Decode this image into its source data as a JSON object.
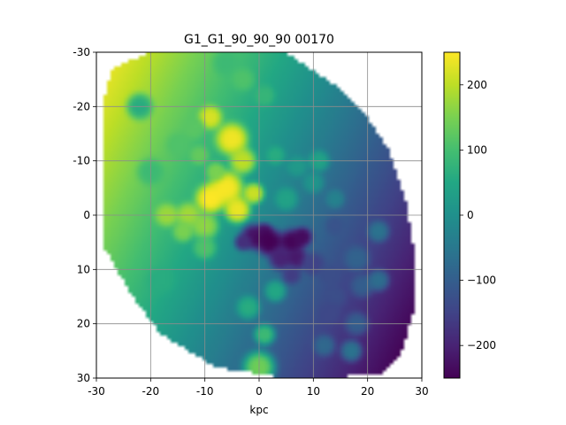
{
  "chart_data": {
    "type": "heatmap",
    "title": "G1_G1_90_90_90   00170",
    "xlabel": "kpc",
    "ylabel": "",
    "xlim": [
      -30,
      30
    ],
    "ylim": [
      -30,
      30
    ],
    "y_inverted": true,
    "x_ticks": [
      "-30",
      "-20",
      "-10",
      "0",
      "10",
      "20",
      "30"
    ],
    "y_ticks": [
      "-30",
      "-20",
      "-10",
      "0",
      "10",
      "20",
      "30"
    ],
    "grid": true,
    "colorbar": {
      "cmap": "viridis",
      "vmin": -250,
      "vmax": 250,
      "ticks": [
        "200",
        "100",
        "0",
        "−100",
        "−200"
      ],
      "tick_values": [
        200,
        100,
        0,
        -100,
        -200
      ]
    },
    "background_value": 0,
    "disk_outline": [
      [
        -27,
        -27
      ],
      [
        -20,
        -30
      ],
      [
        -5,
        -30
      ],
      [
        5,
        -30
      ],
      [
        8,
        -28
      ],
      [
        14,
        -24
      ],
      [
        20,
        -18
      ],
      [
        24,
        -12
      ],
      [
        27,
        -3
      ],
      [
        28.5,
        6
      ],
      [
        28.5,
        18
      ],
      [
        26,
        26
      ],
      [
        22,
        29.5
      ],
      [
        5,
        30
      ],
      [
        -8,
        28
      ],
      [
        -18,
        22
      ],
      [
        -24,
        14
      ],
      [
        -28.5,
        6
      ],
      [
        -29,
        -10
      ],
      [
        -28.5,
        -22
      ]
    ],
    "gradient": {
      "center": [
        -2,
        0
      ],
      "slope_x": -6,
      "slope_y": -3
    },
    "blobs": [
      {
        "x": -9,
        "y": -18,
        "r": 2.2,
        "value": 220
      },
      {
        "x": -5,
        "y": -14,
        "r": 3.0,
        "value": 240
      },
      {
        "x": -3,
        "y": -10,
        "r": 2.5,
        "value": 200
      },
      {
        "x": -6,
        "y": -5,
        "r": 3.2,
        "value": 245
      },
      {
        "x": -9,
        "y": -3,
        "r": 2.8,
        "value": 250
      },
      {
        "x": -4,
        "y": -1,
        "r": 2.5,
        "value": 235
      },
      {
        "x": -1,
        "y": -4,
        "r": 2.0,
        "value": 210
      },
      {
        "x": -17,
        "y": 0,
        "r": 2.2,
        "value": 175
      },
      {
        "x": -13,
        "y": 0,
        "r": 2.4,
        "value": 180
      },
      {
        "x": -10,
        "y": 2,
        "r": 2.6,
        "value": 165
      },
      {
        "x": -14,
        "y": 3,
        "r": 2.0,
        "value": 150
      },
      {
        "x": -12,
        "y": -16,
        "r": 2.0,
        "value": 120
      },
      {
        "x": -15,
        "y": -13,
        "r": 2.2,
        "value": 110
      },
      {
        "x": -11,
        "y": -11,
        "r": 1.8,
        "value": 130
      },
      {
        "x": -20,
        "y": -8,
        "r": 2.5,
        "value": 90
      },
      {
        "x": -8,
        "y": -8,
        "r": 1.8,
        "value": 150
      },
      {
        "x": -10,
        "y": 6,
        "r": 2.2,
        "value": 110
      },
      {
        "x": -6,
        "y": -28,
        "r": 2.5,
        "value": 90
      },
      {
        "x": -3,
        "y": -25,
        "r": 2.2,
        "value": 110
      },
      {
        "x": 1,
        "y": -22,
        "r": 2.0,
        "value": 80
      },
      {
        "x": 0,
        "y": 28,
        "r": 3.0,
        "value": 140
      },
      {
        "x": 1,
        "y": 22,
        "r": 2.0,
        "value": 90
      },
      {
        "x": -2,
        "y": 17,
        "r": 2.2,
        "value": 60
      },
      {
        "x": 3,
        "y": 14,
        "r": 2.0,
        "value": 50
      },
      {
        "x": -18,
        "y": 12,
        "r": 2.6,
        "value": 60
      },
      {
        "x": -22,
        "y": -20,
        "r": 2.4,
        "value": 60
      },
      {
        "x": 5,
        "y": -3,
        "r": 2.2,
        "value": 40
      },
      {
        "x": 7,
        "y": -9,
        "r": 2.0,
        "value": 20
      },
      {
        "x": 10,
        "y": -6,
        "r": 2.0,
        "value": 10
      },
      {
        "x": 3,
        "y": -11,
        "r": 1.8,
        "value": 60
      },
      {
        "x": 1,
        "y": 3,
        "r": 1.6,
        "value": -210
      },
      {
        "x": -1,
        "y": 4,
        "r": 2.4,
        "value": -225
      },
      {
        "x": 2,
        "y": 5,
        "r": 2.6,
        "value": -250
      },
      {
        "x": 6,
        "y": 5,
        "r": 2.4,
        "value": -245
      },
      {
        "x": 8,
        "y": 4,
        "r": 1.8,
        "value": -235
      },
      {
        "x": 4,
        "y": 8,
        "r": 2.2,
        "value": -200
      },
      {
        "x": 7,
        "y": 8,
        "r": 2.0,
        "value": -215
      },
      {
        "x": -3,
        "y": 5,
        "r": 1.6,
        "value": -180
      },
      {
        "x": 10,
        "y": 9,
        "r": 2.2,
        "value": -150
      },
      {
        "x": 13,
        "y": 11,
        "r": 2.0,
        "value": -130
      },
      {
        "x": 14,
        "y": 2,
        "r": 1.8,
        "value": -120
      },
      {
        "x": 18,
        "y": 8,
        "r": 2.4,
        "value": -90
      },
      {
        "x": 19,
        "y": 13,
        "r": 2.2,
        "value": -100
      },
      {
        "x": 14,
        "y": 15,
        "r": 2.0,
        "value": -130
      },
      {
        "x": 13,
        "y": 18,
        "r": 2.0,
        "value": -140
      },
      {
        "x": 18,
        "y": 20,
        "r": 2.2,
        "value": -100
      },
      {
        "x": 22,
        "y": 12,
        "r": 2.0,
        "value": -70
      },
      {
        "x": 17,
        "y": 25,
        "r": 2.0,
        "value": -60
      },
      {
        "x": 12,
        "y": 24,
        "r": 2.0,
        "value": -80
      },
      {
        "x": 22,
        "y": 3,
        "r": 2.0,
        "value": -60
      },
      {
        "x": 14,
        "y": -3,
        "r": 1.8,
        "value": -30
      },
      {
        "x": 11,
        "y": -10,
        "r": 2.0,
        "value": 40
      },
      {
        "x": 6,
        "y": 11,
        "r": 1.8,
        "value": -160
      }
    ]
  }
}
